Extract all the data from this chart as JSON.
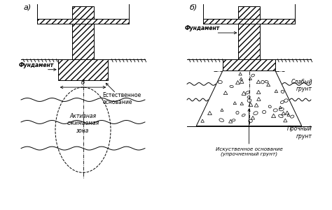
{
  "bg_color": "#ffffff",
  "line_color": "#000000",
  "label_a": "а)",
  "label_b": "б)",
  "text_fundament_a": "Фундамент",
  "text_fundament_b": "Фундамент",
  "text_natural": "Естественное\nоснование",
  "text_active": "Активная\nсжимаемая\nзона",
  "text_artificial": "Искуственное основание\n(упрочненный грунт)",
  "text_weak": "Слабый\nгрунт",
  "text_strong": "Прочный\nгрунт",
  "text_b": "б"
}
